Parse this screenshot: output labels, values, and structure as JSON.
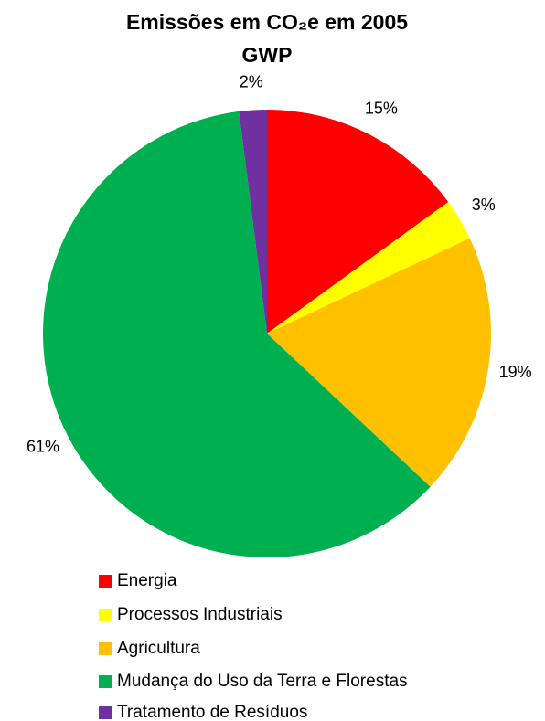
{
  "chart_data": {
    "type": "pie",
    "title": "Emissões em CO₂e  em 2005",
    "subtitle": "GWP",
    "categories": [
      "Energia",
      "Processos Industriais",
      "Agricultura",
      "Mudança do Uso da Terra e Florestas",
      "Tratamento de Resíduos"
    ],
    "values": [
      15,
      3,
      19,
      61,
      2
    ],
    "value_labels": [
      "15%",
      "3%",
      "19%",
      "61%",
      "2%"
    ],
    "colors": [
      "#ff0000",
      "#ffff00",
      "#ffc000",
      "#00b050",
      "#7030a0"
    ],
    "legend": "bottom"
  }
}
